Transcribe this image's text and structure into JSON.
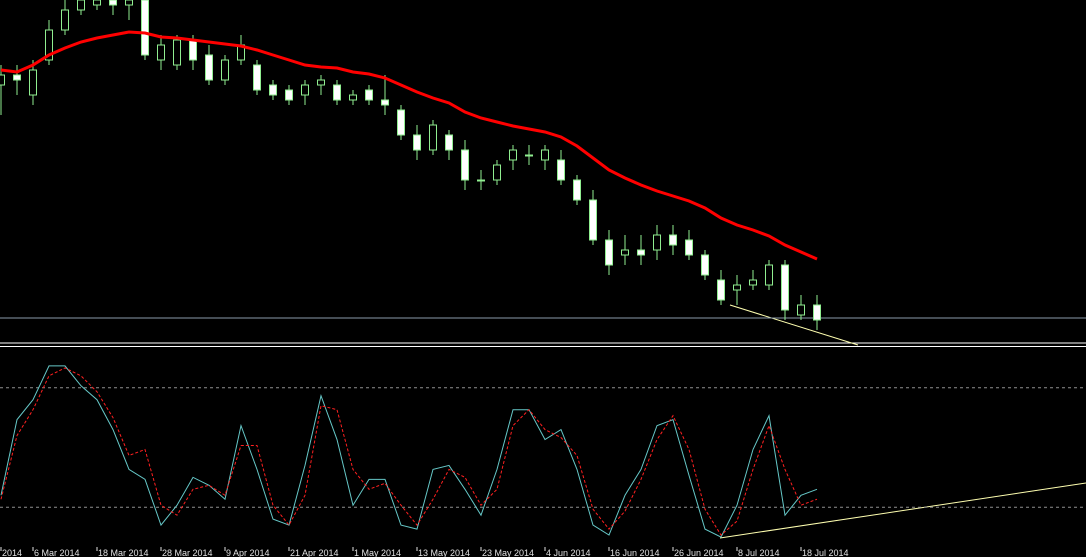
{
  "chart_data": [
    {
      "type": "candlestick",
      "categories": [
        "2014",
        null,
        "6 Mar 2014",
        null,
        null,
        null,
        "18 Mar 2014",
        null,
        null,
        null,
        "28 Mar 2014",
        null,
        null,
        null,
        "9 Apr 2014",
        null,
        null,
        null,
        "21 Apr 2014",
        null,
        null,
        null,
        "1 May 2014",
        null,
        null,
        null,
        "13 May 2014",
        null,
        null,
        null,
        "23 May 2014",
        null,
        null,
        null,
        "4 Jun 2014",
        null,
        null,
        null,
        "16 Jun 2014",
        null,
        null,
        null,
        "26 Jun 2014",
        null,
        null,
        null,
        "8 Jul 2014",
        null,
        null,
        null,
        "18 Jul 2014",
        null
      ],
      "open": [
        260,
        270,
        250,
        285,
        315,
        335,
        340,
        345,
        340,
        345,
        285,
        280,
        305,
        290,
        265,
        285,
        280,
        260,
        255,
        250,
        260,
        260,
        245,
        255,
        245,
        235,
        210,
        195,
        210,
        195,
        165,
        165,
        185,
        190,
        185,
        185,
        165,
        145,
        105,
        90,
        95,
        95,
        110,
        105,
        90,
        65,
        55,
        60,
        60,
        80,
        30,
        40
      ],
      "high": [
        280,
        280,
        285,
        325,
        345,
        345,
        345,
        345,
        345,
        345,
        310,
        310,
        310,
        300,
        290,
        310,
        285,
        265,
        260,
        265,
        270,
        265,
        255,
        260,
        270,
        240,
        220,
        225,
        215,
        205,
        175,
        185,
        200,
        200,
        200,
        195,
        170,
        155,
        115,
        110,
        110,
        120,
        120,
        115,
        95,
        75,
        70,
        75,
        85,
        85,
        50,
        50
      ],
      "low": [
        230,
        250,
        240,
        280,
        310,
        330,
        335,
        330,
        325,
        285,
        275,
        275,
        275,
        260,
        260,
        280,
        250,
        245,
        240,
        240,
        250,
        240,
        240,
        240,
        230,
        205,
        185,
        190,
        185,
        155,
        155,
        160,
        175,
        180,
        175,
        160,
        140,
        100,
        70,
        80,
        80,
        85,
        90,
        85,
        65,
        40,
        40,
        55,
        55,
        25,
        25,
        15
      ],
      "close": [
        270,
        265,
        275,
        315,
        335,
        345,
        345,
        340,
        345,
        290,
        300,
        305,
        285,
        265,
        285,
        300,
        255,
        250,
        245,
        260,
        265,
        245,
        250,
        245,
        240,
        210,
        195,
        220,
        195,
        165,
        165,
        180,
        195,
        190,
        195,
        165,
        145,
        105,
        80,
        95,
        90,
        110,
        100,
        90,
        70,
        45,
        60,
        65,
        80,
        35,
        40,
        25
      ],
      "up_color": "#000000",
      "down_color": "#ffffff",
      "outline_color": "#90ee90",
      "series": [
        {
          "color": "#ff0000",
          "values": [
            275,
            273,
            280,
            290,
            297,
            303,
            307,
            310,
            313,
            312,
            308,
            307,
            305,
            303,
            301,
            299,
            295,
            290,
            285,
            280,
            278,
            277,
            273,
            271,
            267,
            260,
            253,
            247,
            242,
            233,
            227,
            223,
            219,
            216,
            213,
            208,
            199,
            187,
            175,
            167,
            160,
            154,
            149,
            144,
            137,
            127,
            120,
            115,
            109,
            100,
            93,
            86
          ]
        }
      ],
      "hlines": [
        27
      ],
      "hline_color": "#8a9aaa",
      "ylim": [
        0,
        345
      ]
    },
    {
      "type": "line",
      "series": [
        {
          "color": "#66c8c8",
          "values": [
            26,
            64,
            74,
            91,
            91,
            81,
            74,
            59,
            39,
            34,
            11,
            21,
            35,
            31,
            24,
            61,
            39,
            14,
            11,
            41,
            76,
            54,
            21,
            34,
            34,
            11,
            9,
            39,
            41,
            29,
            16,
            39,
            69,
            69,
            54,
            59,
            39,
            11,
            6,
            26,
            39,
            61,
            64,
            36,
            9,
            5,
            21,
            49,
            66,
            16,
            26,
            29
          ]
        },
        {
          "color": "#ff2020",
          "dash": true,
          "values": [
            24,
            56,
            69,
            86,
            90,
            86,
            78,
            65,
            46,
            49,
            21,
            16,
            29,
            31,
            26,
            51,
            51,
            21,
            11,
            26,
            71,
            69,
            39,
            29,
            32,
            21,
            11,
            24,
            39,
            35,
            21,
            29,
            61,
            69,
            59,
            55,
            46,
            19,
            9,
            18,
            34,
            54,
            66,
            49,
            19,
            6,
            13,
            39,
            61,
            39,
            21,
            24
          ]
        }
      ],
      "levels": [
        80,
        20
      ],
      "ylim": [
        0,
        100
      ]
    }
  ]
}
